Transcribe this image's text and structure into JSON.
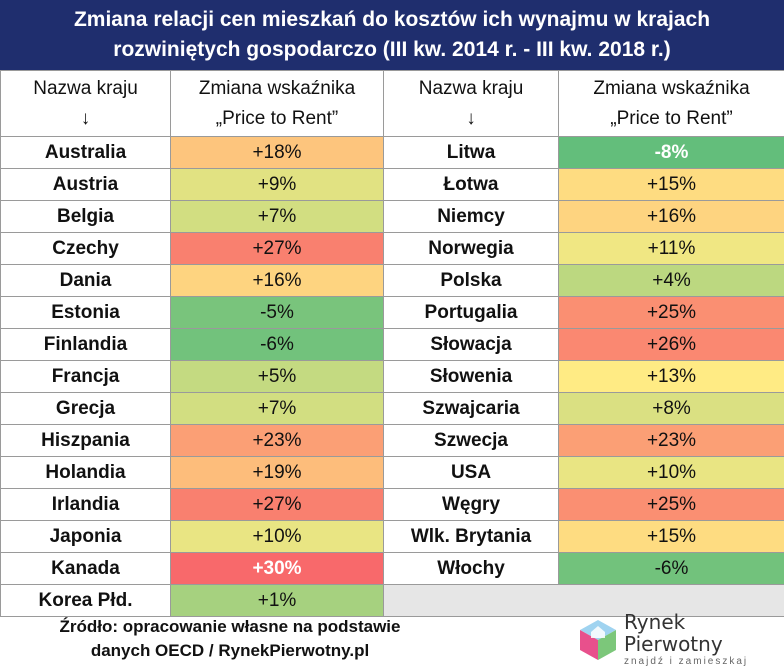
{
  "title": {
    "line1": "Zmiana relacji cen mieszkań do kosztów ich wynajmu w krajach",
    "line2": "rozwiniętych gospodarczo (III kw. 2014 r. - III kw. 2018 r.)"
  },
  "headers": {
    "country_line1": "Nazwa kraju",
    "country_line2": "↓",
    "value_line1": "Zmiana wskaźnika",
    "value_line2": "„Price to Rent”"
  },
  "chart_data": {
    "type": "table",
    "columns": [
      "Nazwa kraju",
      "Zmiana wskaźnika „Price to Rent”"
    ],
    "unit": "%",
    "rows": [
      {
        "country": "Australia",
        "label": "+18%",
        "value": 18
      },
      {
        "country": "Austria",
        "label": "+9%",
        "value": 9
      },
      {
        "country": "Belgia",
        "label": "+7%",
        "value": 7
      },
      {
        "country": "Czechy",
        "label": "+27%",
        "value": 27
      },
      {
        "country": "Dania",
        "label": "+16%",
        "value": 16
      },
      {
        "country": "Estonia",
        "label": "-5%",
        "value": -5
      },
      {
        "country": "Finlandia",
        "label": "-6%",
        "value": -6
      },
      {
        "country": "Francja",
        "label": "+5%",
        "value": 5
      },
      {
        "country": "Grecja",
        "label": "+7%",
        "value": 7
      },
      {
        "country": "Hiszpania",
        "label": "+23%",
        "value": 23
      },
      {
        "country": "Holandia",
        "label": "+19%",
        "value": 19
      },
      {
        "country": "Irlandia",
        "label": "+27%",
        "value": 27
      },
      {
        "country": "Japonia",
        "label": "+10%",
        "value": 10
      },
      {
        "country": "Kanada",
        "label": "+30%",
        "value": 30
      },
      {
        "country": "Korea Płd.",
        "label": "+1%",
        "value": 1
      },
      {
        "country": "Litwa",
        "label": "-8%",
        "value": -8
      },
      {
        "country": "Łotwa",
        "label": "+15%",
        "value": 15
      },
      {
        "country": "Niemcy",
        "label": "+16%",
        "value": 16
      },
      {
        "country": "Norwegia",
        "label": "+11%",
        "value": 11
      },
      {
        "country": "Polska",
        "label": "+4%",
        "value": 4
      },
      {
        "country": "Portugalia",
        "label": "+25%",
        "value": 25
      },
      {
        "country": "Słowacja",
        "label": "+26%",
        "value": 26
      },
      {
        "country": "Słowenia",
        "label": "+13%",
        "value": 13
      },
      {
        "country": "Szwajcaria",
        "label": "+8%",
        "value": 8
      },
      {
        "country": "Szwecja",
        "label": "+23%",
        "value": 23
      },
      {
        "country": "USA",
        "label": "+10%",
        "value": 10
      },
      {
        "country": "Węgry",
        "label": "+25%",
        "value": 25
      },
      {
        "country": "Wlk. Brytania",
        "label": "+15%",
        "value": 15
      },
      {
        "country": "Włochy",
        "label": "-6%",
        "value": -6
      }
    ]
  },
  "colors": {
    "title_bg": "#1f2e6e",
    "scale_low": "#63be7b",
    "scale_mid": "#ffeb84",
    "scale_high": "#f8696b",
    "empty_cell": "#e6e6e6"
  },
  "footer": {
    "source_line1": "Źródło: opracowanie własne na podstawie",
    "source_line2": "danych OECD / RynekPierwotny.pl"
  },
  "logo": {
    "name": "Rynek Pierwotny",
    "tagline": "znajdź i zamieszkaj",
    "icon": "house-cube-logo-icon"
  }
}
